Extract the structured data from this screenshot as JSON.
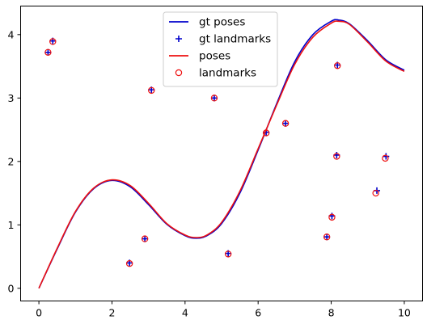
{
  "chart_data": {
    "type": "line",
    "title": "",
    "xlabel": "",
    "ylabel": "",
    "xlim": [
      -0.5,
      10.5
    ],
    "ylim": [
      -0.2,
      4.45
    ],
    "x_ticks": [
      0,
      2,
      4,
      6,
      8,
      10
    ],
    "y_ticks": [
      0,
      1,
      2,
      3,
      4
    ],
    "grid": false,
    "legend_position": "top-center",
    "series": [
      {
        "name": "gt poses",
        "kind": "line",
        "color": "#0000cc",
        "x": [
          0,
          0.5,
          1.0,
          1.5,
          2.0,
          2.5,
          3.0,
          3.5,
          4.0,
          4.3,
          4.6,
          5.0,
          5.5,
          6.0,
          6.5,
          7.0,
          7.5,
          8.0,
          8.2,
          8.5,
          9.0,
          9.5,
          10.0
        ],
        "y": [
          0,
          0.62,
          1.2,
          1.57,
          1.7,
          1.6,
          1.32,
          1.01,
          0.83,
          0.79,
          0.83,
          1.02,
          1.5,
          2.18,
          2.9,
          3.57,
          4.0,
          4.21,
          4.23,
          4.17,
          3.9,
          3.6,
          3.44
        ]
      },
      {
        "name": "gt landmarks",
        "kind": "plus",
        "color": "#0000cc",
        "x": [
          0.25,
          0.38,
          2.48,
          2.9,
          3.08,
          4.8,
          5.18,
          6.22,
          6.75,
          7.88,
          8.02,
          8.15,
          8.17,
          9.25,
          9.5
        ],
        "y": [
          3.72,
          3.9,
          0.4,
          0.78,
          3.13,
          3.0,
          0.55,
          2.46,
          2.6,
          0.81,
          1.14,
          2.1,
          3.52,
          1.54,
          2.08
        ]
      },
      {
        "name": "poses",
        "kind": "line",
        "color": "#ee1111",
        "x": [
          0,
          0.5,
          1.0,
          1.5,
          2.0,
          2.5,
          3.0,
          3.5,
          4.0,
          4.3,
          4.6,
          5.0,
          5.5,
          6.0,
          6.5,
          7.0,
          7.5,
          8.0,
          8.2,
          8.5,
          9.0,
          9.5,
          10.0
        ],
        "y": [
          0,
          0.63,
          1.21,
          1.58,
          1.71,
          1.62,
          1.34,
          1.02,
          0.84,
          0.8,
          0.84,
          1.04,
          1.53,
          2.2,
          2.88,
          3.53,
          3.96,
          4.18,
          4.21,
          4.16,
          3.88,
          3.58,
          3.42
        ]
      },
      {
        "name": "landmarks",
        "kind": "circle",
        "color": "#ee1111",
        "x": [
          0.25,
          0.38,
          2.48,
          2.9,
          3.08,
          4.8,
          5.18,
          6.22,
          6.75,
          7.88,
          8.02,
          8.15,
          8.17,
          9.22,
          9.48
        ],
        "y": [
          3.72,
          3.89,
          0.39,
          0.78,
          3.12,
          3.0,
          0.54,
          2.45,
          2.6,
          0.81,
          1.12,
          2.08,
          3.51,
          1.5,
          2.05
        ]
      }
    ]
  }
}
